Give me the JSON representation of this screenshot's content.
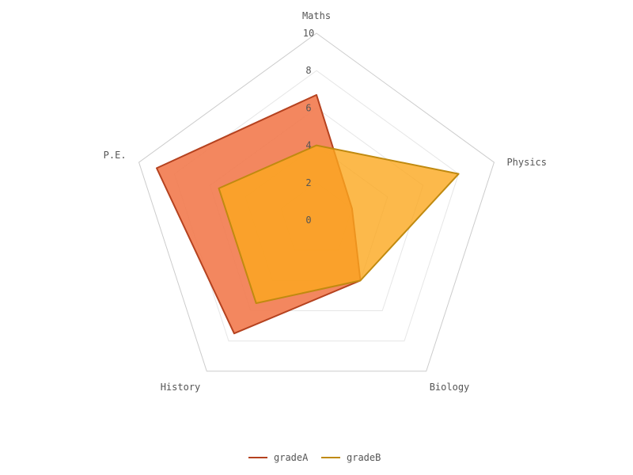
{
  "chart_data": {
    "type": "radar",
    "indicators": [
      "Maths",
      "Physics",
      "Biology",
      "History",
      "P.E."
    ],
    "range": [
      0,
      10
    ],
    "ticks": [
      "0",
      "2",
      "4",
      "6",
      "8",
      "10"
    ],
    "series": [
      {
        "name": "gradeA",
        "values": [
          6.7,
          2.0,
          4.0,
          7.5,
          9.0
        ],
        "stroke": "#b5421f",
        "fill": "#f27a4e",
        "fill_opacity": 0.9
      },
      {
        "name": "gradeB",
        "values": [
          4.0,
          8.0,
          4.0,
          5.5,
          5.5
        ],
        "stroke": "#c08a10",
        "fill": "#fba81e",
        "fill_opacity": 0.8
      }
    ],
    "legend": {
      "position": "bottom"
    }
  }
}
